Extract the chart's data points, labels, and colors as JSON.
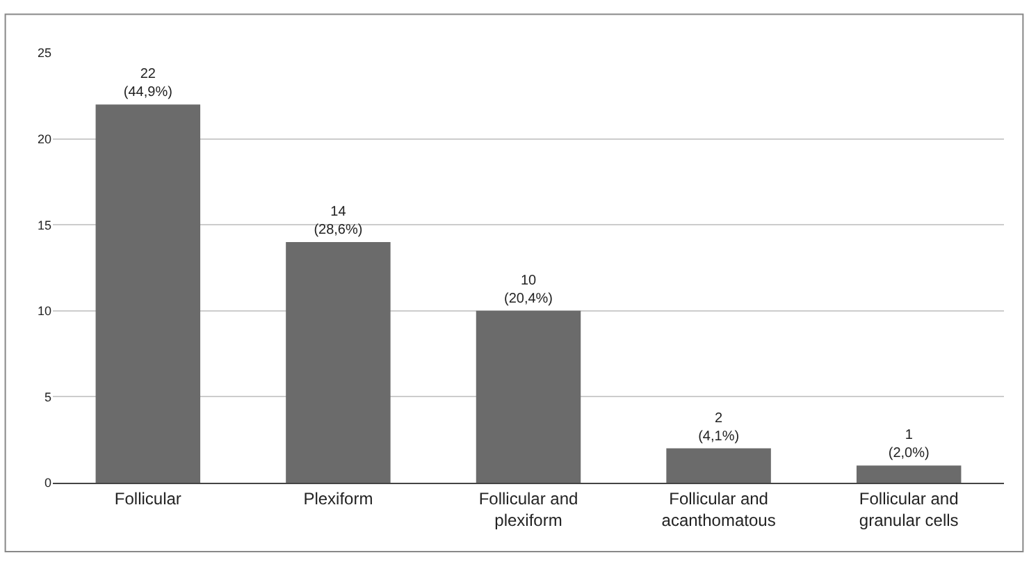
{
  "chart_data": {
    "type": "bar",
    "categories": [
      "Follicular",
      "Plexiform",
      "Follicular and\nplexiform",
      "Follicular and\nacanthomatous",
      "Follicular and\ngranular cells"
    ],
    "values": [
      22,
      14,
      10,
      2,
      1
    ],
    "value_labels": [
      "22\n(44,9%)",
      "14\n(28,6%)",
      "10\n(20,4%)",
      "2\n(4,1%)",
      "1\n(2,0%)"
    ],
    "color": "#6b6b6b",
    "ylim": [
      0,
      25
    ],
    "yticks": [
      0,
      5,
      10,
      15,
      20,
      25
    ],
    "grid": "y",
    "legend": false
  }
}
